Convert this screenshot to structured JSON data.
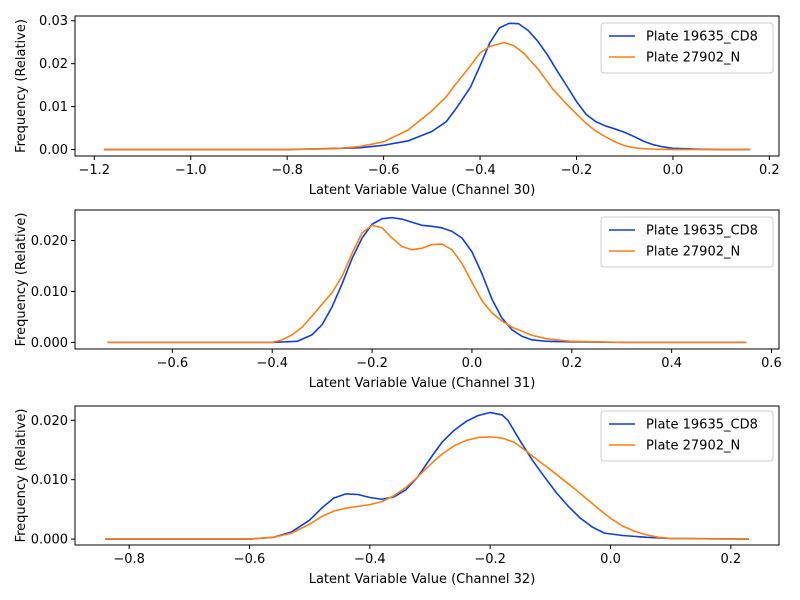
{
  "colors": {
    "series_1": "#0d3fe0",
    "series_2": "#ff7f0e"
  },
  "chart_data": [
    {
      "type": "line",
      "xlabel": "Latent Variable Value (Channel 30)",
      "ylabel": "Frequency (Relative)",
      "xlim": [
        -1.24,
        0.22
      ],
      "ylim": [
        -0.0015,
        0.0311
      ],
      "xticks": [
        -1.2,
        -1.0,
        -0.8,
        -0.6,
        -0.4,
        -0.2,
        0.0,
        0.2
      ],
      "xtick_labels": [
        "−1.2",
        "−1.0",
        "−0.8",
        "−0.6",
        "−0.4",
        "−0.2",
        "0.0",
        "0.2"
      ],
      "yticks": [
        0.0,
        0.01,
        0.02,
        0.03
      ],
      "ytick_labels": [
        "0.00",
        "0.01",
        "0.02",
        "0.03"
      ],
      "legend": {
        "position": "top-right"
      },
      "series": [
        {
          "name": "Plate 19635_CD8",
          "x": [
            -1.18,
            -0.8,
            -0.65,
            -0.6,
            -0.55,
            -0.5,
            -0.47,
            -0.45,
            -0.42,
            -0.4,
            -0.38,
            -0.36,
            -0.34,
            -0.32,
            -0.3,
            -0.28,
            -0.26,
            -0.24,
            -0.22,
            -0.2,
            -0.18,
            -0.16,
            -0.14,
            -0.12,
            -0.1,
            -0.08,
            -0.06,
            -0.04,
            -0.02,
            0.0,
            0.05,
            0.1,
            0.16
          ],
          "y": [
            0.0,
            0.0,
            0.0004,
            0.001,
            0.002,
            0.0042,
            0.0065,
            0.0095,
            0.0145,
            0.0195,
            0.0248,
            0.0283,
            0.0294,
            0.0293,
            0.0277,
            0.0252,
            0.022,
            0.0183,
            0.0148,
            0.0112,
            0.0082,
            0.0065,
            0.0055,
            0.0048,
            0.004,
            0.003,
            0.0019,
            0.0011,
            0.0006,
            0.0003,
            0.0001,
            0.0,
            0.0
          ]
        },
        {
          "name": "Plate 27902_N",
          "x": [
            -1.18,
            -0.8,
            -0.7,
            -0.65,
            -0.6,
            -0.55,
            -0.5,
            -0.47,
            -0.45,
            -0.42,
            -0.4,
            -0.38,
            -0.36,
            -0.35,
            -0.33,
            -0.31,
            -0.28,
            -0.25,
            -0.22,
            -0.2,
            -0.18,
            -0.16,
            -0.14,
            -0.12,
            -0.1,
            -0.08,
            -0.06,
            -0.04,
            0.0,
            0.05,
            0.16
          ],
          "y": [
            0.0,
            0.0,
            0.0002,
            0.0007,
            0.0018,
            0.0045,
            0.009,
            0.0123,
            0.0153,
            0.0195,
            0.0225,
            0.024,
            0.0246,
            0.0249,
            0.0242,
            0.0225,
            0.0188,
            0.0142,
            0.0105,
            0.0083,
            0.0061,
            0.0043,
            0.003,
            0.0018,
            0.0009,
            0.0004,
            0.0002,
            0.0001,
            0.0,
            0.0,
            0.0
          ]
        }
      ]
    },
    {
      "type": "line",
      "xlabel": "Latent Variable Value (Channel 31)",
      "ylabel": "Frequency (Relative)",
      "xlim": [
        -0.795,
        0.615
      ],
      "ylim": [
        -0.0013,
        0.026
      ],
      "xticks": [
        -0.6,
        -0.4,
        -0.2,
        0.0,
        0.2,
        0.4,
        0.6
      ],
      "xtick_labels": [
        "−0.6",
        "−0.4",
        "−0.2",
        "0.0",
        "0.2",
        "0.4",
        "0.6"
      ],
      "yticks": [
        0.0,
        0.01,
        0.02
      ],
      "ytick_labels": [
        "0.000",
        "0.010",
        "0.020"
      ],
      "legend": {
        "position": "top-right"
      },
      "series": [
        {
          "name": "Plate 19635_CD8",
          "x": [
            -0.73,
            -0.4,
            -0.35,
            -0.32,
            -0.3,
            -0.28,
            -0.26,
            -0.24,
            -0.22,
            -0.2,
            -0.18,
            -0.16,
            -0.14,
            -0.12,
            -0.1,
            -0.08,
            -0.06,
            -0.04,
            -0.02,
            0.0,
            0.02,
            0.04,
            0.06,
            0.08,
            0.1,
            0.12,
            0.15,
            0.2,
            0.3,
            0.55
          ],
          "y": [
            0.0,
            0.0,
            0.0002,
            0.0015,
            0.0035,
            0.007,
            0.0115,
            0.0165,
            0.0205,
            0.0232,
            0.0243,
            0.0245,
            0.0242,
            0.0236,
            0.023,
            0.0228,
            0.0225,
            0.0218,
            0.0205,
            0.0178,
            0.0135,
            0.0085,
            0.0048,
            0.0025,
            0.0012,
            0.0005,
            0.0002,
            0.0001,
            0.0,
            0.0
          ]
        },
        {
          "name": "Plate 27902_N",
          "x": [
            -0.73,
            -0.4,
            -0.38,
            -0.36,
            -0.34,
            -0.32,
            -0.3,
            -0.28,
            -0.26,
            -0.24,
            -0.22,
            -0.2,
            -0.18,
            -0.16,
            -0.14,
            -0.12,
            -0.1,
            -0.08,
            -0.06,
            -0.04,
            -0.02,
            0.0,
            0.02,
            0.04,
            0.06,
            0.08,
            0.1,
            0.12,
            0.15,
            0.2,
            0.3,
            0.55
          ],
          "y": [
            0.0,
            0.0,
            0.0005,
            0.0015,
            0.003,
            0.0052,
            0.0075,
            0.0098,
            0.013,
            0.0175,
            0.0215,
            0.023,
            0.0225,
            0.0205,
            0.0188,
            0.0182,
            0.0185,
            0.0192,
            0.0193,
            0.0182,
            0.0155,
            0.0118,
            0.0082,
            0.0058,
            0.0042,
            0.003,
            0.0022,
            0.0014,
            0.0007,
            0.0002,
            0.0,
            0.0
          ]
        }
      ]
    },
    {
      "type": "line",
      "xlabel": "Latent Variable Value (Channel 32)",
      "ylabel": "Frequency (Relative)",
      "xlim": [
        -0.89,
        0.28
      ],
      "ylim": [
        -0.001,
        0.0224
      ],
      "xticks": [
        -0.8,
        -0.6,
        -0.4,
        -0.2,
        0.0,
        0.2
      ],
      "xtick_labels": [
        "−0.8",
        "−0.6",
        "−0.4",
        "−0.2",
        "0.0",
        "0.2"
      ],
      "yticks": [
        0.0,
        0.01,
        0.02
      ],
      "ytick_labels": [
        "0.000",
        "0.010",
        "0.020"
      ],
      "legend": {
        "position": "top-right"
      },
      "series": [
        {
          "name": "Plate 19635_CD8",
          "x": [
            -0.84,
            -0.6,
            -0.56,
            -0.53,
            -0.5,
            -0.48,
            -0.46,
            -0.44,
            -0.42,
            -0.4,
            -0.38,
            -0.36,
            -0.34,
            -0.32,
            -0.3,
            -0.28,
            -0.26,
            -0.24,
            -0.22,
            -0.2,
            -0.18,
            -0.17,
            -0.15,
            -0.13,
            -0.11,
            -0.09,
            -0.07,
            -0.05,
            -0.03,
            -0.01,
            0.02,
            0.06,
            0.1,
            0.23
          ],
          "y": [
            0.0,
            0.0,
            0.0003,
            0.0012,
            0.0032,
            0.0052,
            0.0069,
            0.0076,
            0.0075,
            0.007,
            0.0067,
            0.0071,
            0.0083,
            0.0105,
            0.0135,
            0.0163,
            0.0183,
            0.0198,
            0.0208,
            0.0213,
            0.0209,
            0.0199,
            0.0165,
            0.0133,
            0.0105,
            0.0078,
            0.0055,
            0.0035,
            0.002,
            0.001,
            0.0006,
            0.0003,
            0.0001,
            0.0
          ]
        },
        {
          "name": "Plate 27902_N",
          "x": [
            -0.84,
            -0.6,
            -0.56,
            -0.53,
            -0.5,
            -0.48,
            -0.46,
            -0.44,
            -0.42,
            -0.4,
            -0.38,
            -0.36,
            -0.34,
            -0.32,
            -0.3,
            -0.28,
            -0.26,
            -0.24,
            -0.22,
            -0.2,
            -0.18,
            -0.16,
            -0.14,
            -0.12,
            -0.1,
            -0.08,
            -0.06,
            -0.04,
            -0.02,
            0.0,
            0.02,
            0.04,
            0.06,
            0.08,
            0.1,
            0.12,
            0.23
          ],
          "y": [
            0.0,
            0.0,
            0.0003,
            0.001,
            0.0025,
            0.0038,
            0.0047,
            0.0052,
            0.0055,
            0.0058,
            0.0063,
            0.0073,
            0.0087,
            0.0105,
            0.0125,
            0.0143,
            0.0157,
            0.0166,
            0.0171,
            0.0172,
            0.017,
            0.0163,
            0.0148,
            0.0132,
            0.0117,
            0.0101,
            0.0085,
            0.0068,
            0.0051,
            0.0035,
            0.0022,
            0.0013,
            0.0007,
            0.0003,
            0.0001,
            5e-05,
            0.0
          ]
        }
      ]
    }
  ]
}
